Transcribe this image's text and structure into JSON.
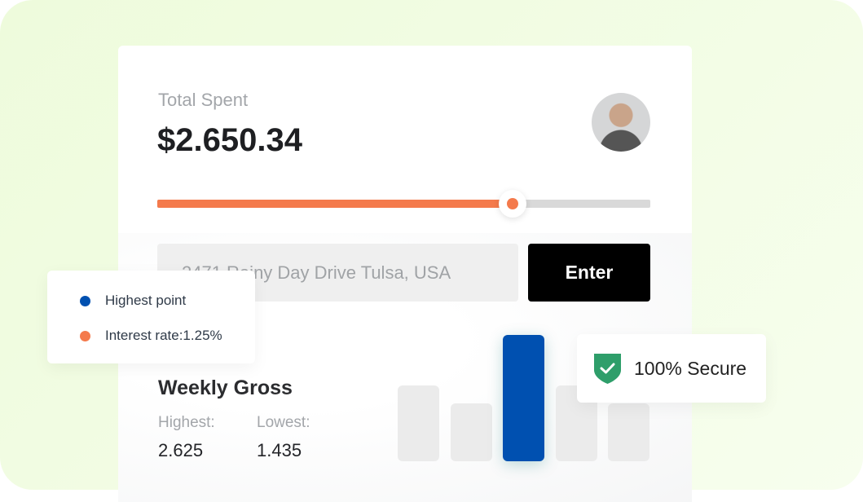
{
  "summary": {
    "title": "Total Spent",
    "amount": "$2.650.34",
    "progress_percent": 72
  },
  "address": {
    "value": "2471 Rainy Day Drive Tulsa, USA"
  },
  "enter_button": "Enter",
  "legend": {
    "items": [
      {
        "label": "Highest point",
        "color": "#0050b0"
      },
      {
        "label": "Interest rate:1.25%",
        "color": "#f47a4c"
      }
    ]
  },
  "weekly": {
    "title": "Weekly Gross",
    "highest_label": "Highest:",
    "highest_value": "2.625",
    "lowest_label": "Lowest:",
    "lowest_value": "1.435",
    "bars": [
      0.6,
      0.46,
      1,
      0.6,
      0.46
    ],
    "highlight_index": 2
  },
  "secure": {
    "label": "100% Secure",
    "icon": "shield-check-icon",
    "color": "#2e9e6a"
  },
  "colors": {
    "accent": "#f47a4c",
    "primary": "#0050b0"
  }
}
